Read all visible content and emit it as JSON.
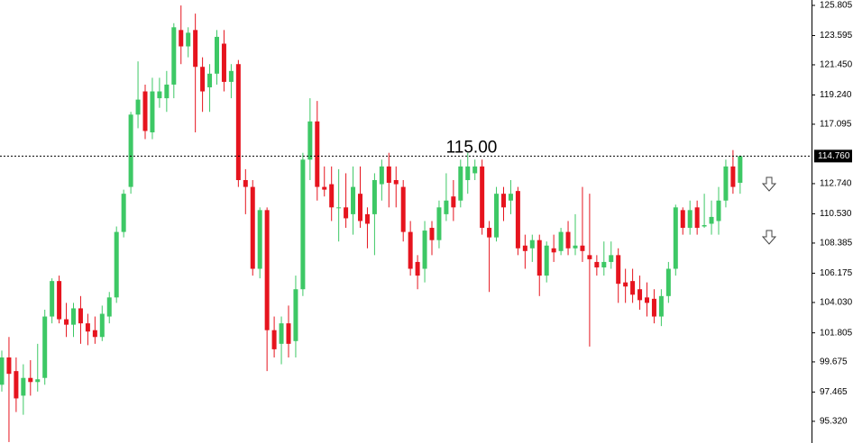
{
  "chart_data": {
    "type": "candlestick",
    "up_color": "#3dc865",
    "down_color": "#e6141e",
    "ylim": [
      93.73,
      126.2
    ],
    "yticks": [
      125.805,
      123.595,
      {
        "value": 121.45,
        "label": "121.450"
      },
      {
        "value": 119.24,
        "label": "119.240"
      },
      117.095,
      {
        "value": 112.74,
        "label": "112.740"
      },
      {
        "value": 110.53,
        "label": "110.530"
      },
      108.385,
      106.175,
      {
        "value": 104.03,
        "label": "104.030"
      },
      101.805,
      99.675,
      97.465,
      {
        "value": 95.32,
        "label": "95.320"
      }
    ],
    "current_price": {
      "value": 114.76,
      "label": "114.760"
    },
    "level_label": "115.00",
    "open": [
      98.0,
      100.0,
      99.0,
      97.2,
      98.5,
      98.2,
      98.5,
      103.0,
      105.6,
      102.8,
      102.4,
      103.6,
      102.5,
      102.0,
      101.5,
      103.0,
      104.4,
      109.2,
      112.5,
      117.8,
      119.5,
      116.5,
      119.0,
      119.0,
      120.0,
      124.0,
      122.8,
      124.0,
      121.3,
      119.8,
      120.8,
      123.0,
      120.2,
      121.5,
      113.0,
      112.5,
      106.5,
      110.8,
      102.0,
      101.0,
      102.5,
      101.2,
      105.0,
      114.5,
      117.3,
      112.5,
      112.7,
      111.0,
      111.0,
      110.5,
      112.0,
      110.5,
      110.5,
      112.7,
      114.0,
      113.0,
      112.5,
      109.2,
      107.0,
      106.5,
      109.5,
      108.6,
      110.5,
      111.8,
      111.5,
      113.0,
      113.5,
      114.0,
      109.5,
      108.8,
      112.0,
      111.5,
      112.2,
      108.2,
      108.0,
      108.6,
      106.0,
      108.0,
      107.8,
      109.2,
      108.0,
      108.2,
      107.5,
      107.0,
      106.6,
      107.0,
      107.5,
      105.5,
      105.6,
      105.0,
      104.4,
      104.3,
      103.0,
      104.5,
      106.5,
      110.8,
      109.5,
      111.0,
      109.6,
      109.8,
      110.0,
      111.5,
      114.0,
      112.8
    ],
    "high": [
      100.5,
      101.5,
      100.0,
      99.5,
      99.8,
      101.0,
      103.5,
      105.8,
      106.0,
      104.0,
      104.0,
      104.5,
      103.2,
      103.0,
      103.8,
      104.8,
      109.6,
      112.3,
      118.0,
      121.7,
      120.0,
      120.5,
      120.5,
      121.0,
      124.5,
      125.8,
      124.2,
      125.2,
      122.0,
      121.5,
      124.0,
      124.0,
      121.5,
      121.8,
      113.8,
      113.0,
      111.0,
      111.0,
      103.0,
      103.0,
      103.8,
      106.0,
      115.0,
      119.0,
      118.8,
      114.0,
      114.0,
      113.8,
      113.5,
      114.0,
      114.0,
      111.0,
      113.5,
      114.5,
      115.0,
      114.0,
      113.0,
      110.0,
      107.5,
      110.0,
      110.0,
      111.5,
      113.5,
      113.0,
      114.5,
      115.0,
      114.5,
      114.5,
      110.0,
      112.5,
      112.5,
      113.0,
      112.5,
      109.0,
      109.0,
      109.0,
      108.5,
      109.0,
      109.5,
      110.0,
      110.5,
      112.5,
      112.0,
      107.5,
      108.5,
      108.5,
      108.0,
      106.5,
      106.5,
      106.0,
      105.5,
      105.0,
      105.0,
      107.0,
      111.2,
      111.0,
      111.5,
      111.5,
      112.0,
      111.5,
      112.5,
      114.5,
      115.2,
      114.8
    ],
    "low": [
      97.5,
      93.8,
      96.0,
      95.8,
      97.2,
      97.5,
      98.0,
      102.5,
      102.5,
      101.5,
      101.5,
      101.0,
      100.9,
      101.0,
      101.2,
      102.5,
      104.0,
      108.8,
      112.0,
      116.8,
      116.0,
      116.0,
      118.3,
      118.0,
      119.0,
      121.5,
      122.0,
      116.5,
      118.0,
      118.0,
      120.0,
      119.5,
      119.0,
      112.5,
      110.5,
      106.0,
      105.8,
      99.0,
      100.0,
      99.5,
      100.0,
      100.0,
      104.5,
      113.0,
      111.5,
      111.8,
      110.0,
      108.5,
      109.5,
      109.0,
      109.5,
      108.0,
      107.5,
      111.5,
      111.0,
      111.0,
      108.5,
      106.0,
      105.0,
      105.5,
      107.5,
      108.0,
      110.0,
      110.0,
      111.0,
      112.0,
      113.0,
      109.0,
      104.8,
      108.5,
      110.0,
      110.5,
      107.5,
      106.5,
      107.0,
      104.5,
      105.5,
      107.0,
      107.5,
      107.5,
      107.5,
      107.0,
      100.8,
      106.0,
      106.0,
      106.5,
      104.0,
      104.0,
      104.0,
      103.5,
      103.0,
      102.5,
      102.3,
      104.0,
      106.0,
      109.0,
      109.0,
      109.0,
      109.5,
      109.0,
      109.0,
      111.0,
      112.0,
      112.0
    ],
    "close": [
      100.0,
      98.8,
      97.0,
      98.5,
      98.2,
      98.4,
      103.0,
      105.6,
      102.8,
      102.4,
      103.6,
      102.5,
      101.9,
      101.5,
      103.2,
      104.4,
      109.2,
      112.0,
      117.8,
      118.9,
      116.6,
      119.5,
      119.5,
      120.0,
      124.2,
      122.8,
      123.8,
      121.3,
      119.5,
      120.8,
      123.5,
      120.2,
      121.0,
      113.0,
      112.5,
      106.5,
      110.8,
      102.0,
      100.6,
      102.5,
      101.0,
      105.0,
      114.5,
      117.3,
      112.5,
      112.3,
      111.0,
      111.0,
      110.2,
      112.5,
      110.0,
      109.8,
      113.0,
      114.0,
      112.8,
      112.7,
      109.2,
      106.5,
      106.0,
      109.3,
      108.6,
      111.0,
      111.5,
      111.0,
      114.0,
      114.0,
      114.0,
      109.5,
      108.8,
      112.0,
      111.0,
      112.0,
      108.0,
      107.8,
      108.6,
      106.0,
      108.2,
      107.7,
      109.2,
      108.0,
      108.2,
      107.8,
      107.2,
      106.6,
      107.0,
      107.5,
      105.4,
      105.2,
      104.6,
      104.2,
      104.0,
      103.0,
      104.5,
      106.5,
      111.0,
      109.5,
      110.8,
      109.5,
      109.7,
      110.3,
      111.5,
      114.0,
      112.5,
      114.76
    ]
  }
}
